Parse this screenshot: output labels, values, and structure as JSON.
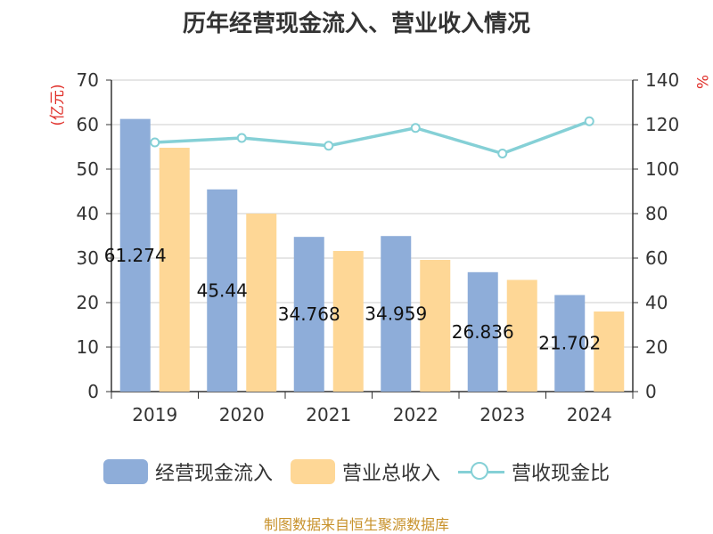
{
  "title": "历年经营现金流入、营业收入情况",
  "source": "制图数据来自恒生聚源数据库",
  "colors": {
    "cash_inflow": "#8eadd9",
    "revenue": "#fed796",
    "ratio": "#85d0d6",
    "unit": "#e0302a",
    "source": "#c8922c"
  },
  "chart_data": {
    "type": "bar",
    "categories": [
      "2019",
      "2020",
      "2021",
      "2022",
      "2023",
      "2024"
    ],
    "series": [
      {
        "name": "经营现金流入",
        "axis": "left",
        "values": [
          61.274,
          45.44,
          34.768,
          34.959,
          26.836,
          21.702
        ]
      },
      {
        "name": "营业总收入",
        "axis": "left",
        "values": [
          54.8,
          40.0,
          31.6,
          29.6,
          25.1,
          18.0
        ]
      },
      {
        "name": "营收现金比",
        "axis": "right",
        "type": "line",
        "values": [
          112,
          114,
          110.5,
          118.5,
          107,
          121.5
        ]
      }
    ],
    "data_labels": [
      "61.274",
      "45.44",
      "34.768",
      "34.959",
      "26.836",
      "21.702"
    ],
    "y_left": {
      "label": "(亿元)",
      "ticks": [
        "0",
        "10",
        "20",
        "30",
        "40",
        "50",
        "60",
        "70"
      ],
      "ylim": [
        0,
        70
      ]
    },
    "y_right": {
      "label": "%",
      "ticks": [
        "0",
        "20",
        "40",
        "60",
        "80",
        "100",
        "120",
        "140"
      ],
      "ylim": [
        0,
        140
      ]
    },
    "grid": true,
    "legend": "bottom"
  }
}
